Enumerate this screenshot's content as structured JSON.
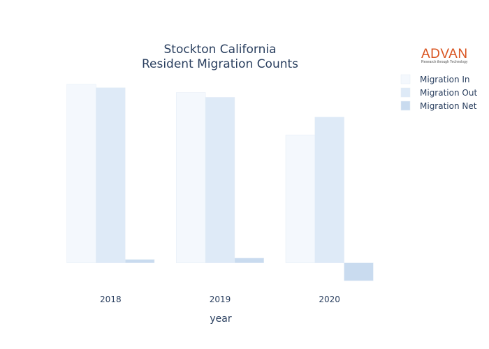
{
  "logo": {
    "name": "ADVAN",
    "tagline": "Research through Technology"
  },
  "chart_data": {
    "type": "bar",
    "title": "Stockton California",
    "subtitle": "Resident Migration Counts",
    "xlabel": "year",
    "ylabel": "",
    "categories": [
      "2018",
      "2019",
      "2020"
    ],
    "series": [
      {
        "name": "Migration In",
        "values": [
          26100,
          24900,
          18700
        ],
        "color": "#f4f8fd"
      },
      {
        "name": "Migration Out",
        "values": [
          25600,
          24200,
          21300
        ],
        "color": "#deeaf7"
      },
      {
        "name": "Migration Net",
        "values": [
          500,
          700,
          -2600
        ],
        "color": "#c9dbef"
      }
    ],
    "ylim": [
      -3200,
      27000
    ],
    "grid": false,
    "legend_position": "top-right"
  }
}
